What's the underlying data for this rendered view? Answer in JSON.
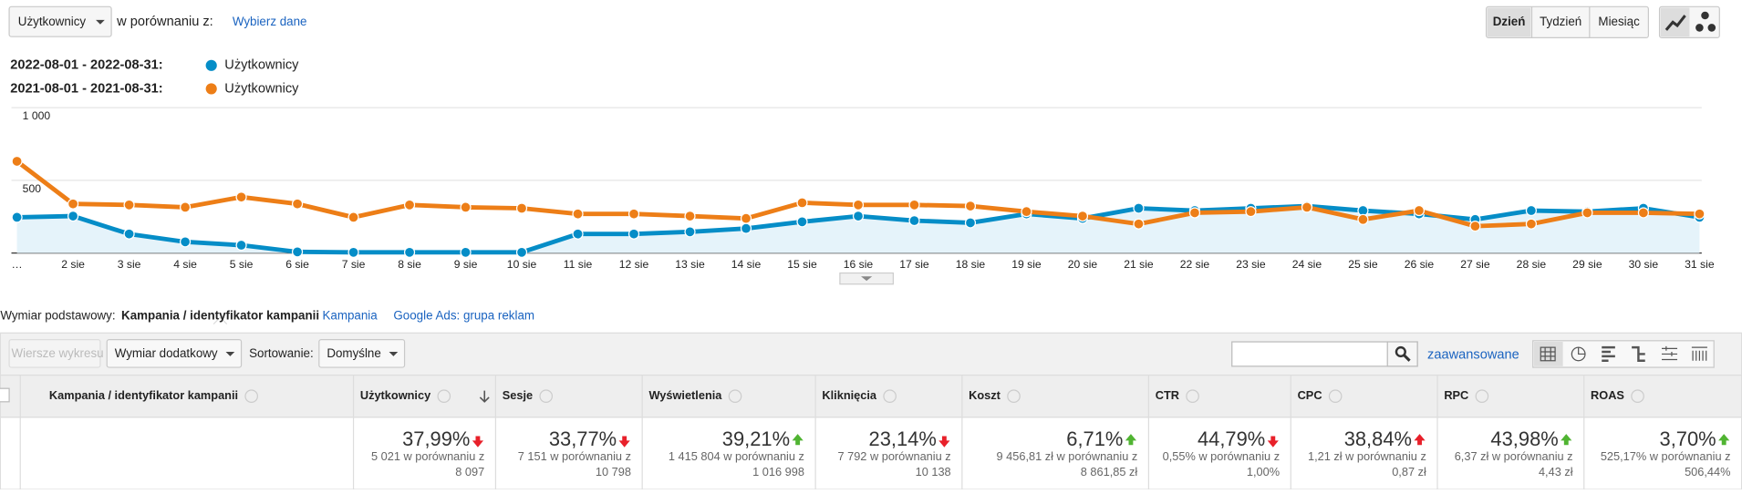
{
  "toolbar": {
    "metric": "Użytkownicy",
    "compare": "w porównaniu z:",
    "choose": "Wybierz dane",
    "periods": [
      "Dzień",
      "Tydzień",
      "Miesiąc"
    ],
    "active_period": 0
  },
  "legend": {
    "ranges": [
      "2022-08-01 - 2022-08-31:",
      "2021-08-01 - 2021-08-31:"
    ]
  },
  "chart_data": {
    "type": "line",
    "area": true,
    "categories": [
      "…",
      "2 sie",
      "3 sie",
      "4 sie",
      "5 sie",
      "6 sie",
      "7 sie",
      "8 sie",
      "9 sie",
      "10 sie",
      "11 sie",
      "12 sie",
      "13 sie",
      "14 sie",
      "15 sie",
      "16 sie",
      "17 sie",
      "18 sie",
      "19 sie",
      "20 sie",
      "21 sie",
      "22 sie",
      "23 sie",
      "24 sie",
      "25 sie",
      "26 sie",
      "27 sie",
      "28 sie",
      "29 sie",
      "30 sie",
      "31 sie"
    ],
    "series": [
      {
        "name": "Użytkownicy",
        "color": "#058dc7",
        "values": [
          246,
          254,
          131,
          77,
          54,
          8,
          5,
          5,
          5,
          5,
          131,
          131,
          146,
          169,
          215,
          254,
          223,
          208,
          269,
          238,
          308,
          292,
          308,
          323,
          292,
          269,
          231,
          292,
          285,
          308,
          246
        ]
      },
      {
        "name": "Użytkownicy",
        "color": "#ed7e17",
        "values": [
          631,
          338,
          331,
          315,
          385,
          338,
          246,
          331,
          315,
          308,
          269,
          269,
          254,
          238,
          346,
          331,
          331,
          323,
          285,
          254,
          200,
          277,
          285,
          315,
          231,
          292,
          185,
          200,
          277,
          277,
          269
        ]
      }
    ],
    "ylim": [
      0,
      1000
    ],
    "yticks": [
      500,
      {
        "value": 1000,
        "label": "1 000"
      }
    ],
    "grid": true
  },
  "dimension": {
    "label": "Wymiar podstawowy:",
    "active": "Kampania / identyfikator kampanii",
    "links": [
      "Kampania",
      "Google Ads: grupa reklam"
    ]
  },
  "controls": {
    "plot_rows": "Wiersze wykresu",
    "secondary": "Wymiar dodatkowy",
    "sort_label": "Sortowanie:",
    "sort": "Domyślne",
    "advanced": "zaawansowane"
  },
  "table": {
    "columns": [
      "Kampania / identyfikator kampanii",
      "Użytkownicy",
      "Sesje",
      "Wyświetlenia",
      "Kliknięcia",
      "Koszt",
      "CTR",
      "CPC",
      "RPC",
      "ROAS"
    ],
    "summary": [
      {
        "pct": "37,99%",
        "trend": "down",
        "good": false,
        "detail": [
          "5 021 w porównaniu z",
          "8 097"
        ]
      },
      {
        "pct": "33,77%",
        "trend": "down",
        "good": false,
        "detail": [
          "7 151 w porównaniu z",
          "10 798"
        ]
      },
      {
        "pct": "39,21%",
        "trend": "up",
        "good": true,
        "detail": [
          "1 415 804 w porównaniu z",
          "1 016 998"
        ]
      },
      {
        "pct": "23,14%",
        "trend": "down",
        "good": false,
        "detail": [
          "7 792 w porównaniu z",
          "10 138"
        ]
      },
      {
        "pct": "6,71%",
        "trend": "up",
        "good": true,
        "detail": [
          "9 456,81 zł w porównaniu z",
          "8 861,85 zł"
        ]
      },
      {
        "pct": "44,79%",
        "trend": "down",
        "good": false,
        "detail": [
          "0,55% w porównaniu z",
          "1,00%"
        ]
      },
      {
        "pct": "38,84%",
        "trend": "up",
        "good": false,
        "detail": [
          "1,21 zł w porównaniu z",
          "0,87 zł"
        ]
      },
      {
        "pct": "43,98%",
        "trend": "up",
        "good": true,
        "detail": [
          "6,37 zł w porównaniu z",
          "4,43 zł"
        ]
      },
      {
        "pct": "3,70%",
        "trend": "up",
        "good": true,
        "detail": [
          "525,17% w porównaniu z",
          "506,44%"
        ]
      }
    ]
  }
}
